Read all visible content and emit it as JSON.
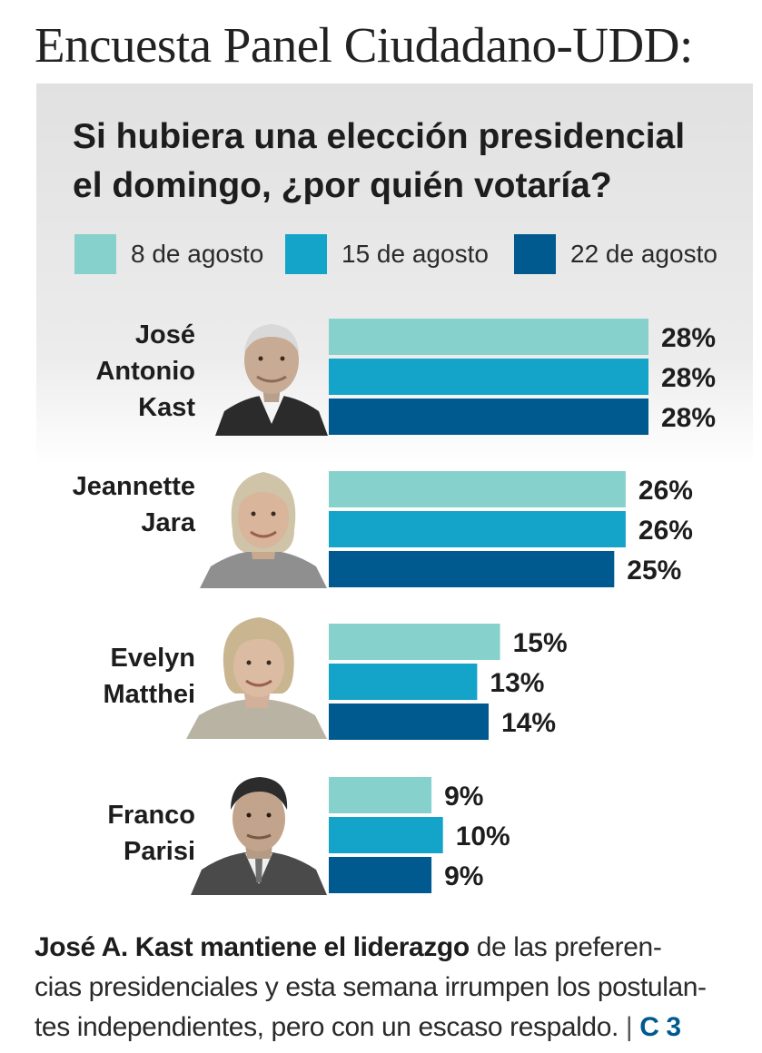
{
  "headline": "Encuesta Panel Ciudadano-UDD:",
  "question_line1": "Si hubiera una elección presidencial",
  "question_line2": "el domingo, ¿por quién votaría?",
  "legend": [
    {
      "label": "8 de agosto",
      "color": "#86d1cc"
    },
    {
      "label": "15 de agosto",
      "color": "#14a3c9"
    },
    {
      "label": "22 de agosto",
      "color": "#005a8f"
    }
  ],
  "candidates": [
    {
      "name_lines": [
        "José",
        "Antonio",
        "Kast"
      ],
      "photo_icon": "portrait-kast-icon"
    },
    {
      "name_lines": [
        "Jeannette",
        "Jara"
      ],
      "photo_icon": "portrait-jara-icon"
    },
    {
      "name_lines": [
        "Evelyn",
        "Matthei"
      ],
      "photo_icon": "portrait-matthei-icon"
    },
    {
      "name_lines": [
        "Franco",
        "Parisi"
      ],
      "photo_icon": "portrait-parisi-icon"
    }
  ],
  "chart_data": {
    "type": "bar",
    "orientation": "horizontal",
    "title": "Si hubiera una elección presidencial el domingo, ¿por quién votaría?",
    "categories": [
      "José Antonio Kast",
      "Jeannette Jara",
      "Evelyn Matthei",
      "Franco Parisi"
    ],
    "series": [
      {
        "name": "8 de agosto",
        "values": [
          28,
          26,
          15,
          9
        ],
        "labels": [
          "28%",
          "26%",
          "15%",
          "9%"
        ]
      },
      {
        "name": "15 de agosto",
        "values": [
          28,
          26,
          13,
          10
        ],
        "labels": [
          "28%",
          "26%",
          "13%",
          "10%"
        ]
      },
      {
        "name": "22 de agosto",
        "values": [
          28,
          25,
          14,
          9
        ],
        "labels": [
          "28%",
          "25%",
          "14%",
          "9%"
        ]
      }
    ],
    "value_unit": "%",
    "xlim": [
      0,
      28
    ],
    "grid": false,
    "legend_position": "top"
  },
  "caption": {
    "bold": "José A. Kast mantiene el liderazgo",
    "line1_rest": " de las preferen-",
    "line2": "cias presidenciales y esta semana irrumpen los postulan-",
    "line3": "tes independientes, pero con un escaso respaldo.",
    "separator": "|",
    "reference": "C 3"
  }
}
